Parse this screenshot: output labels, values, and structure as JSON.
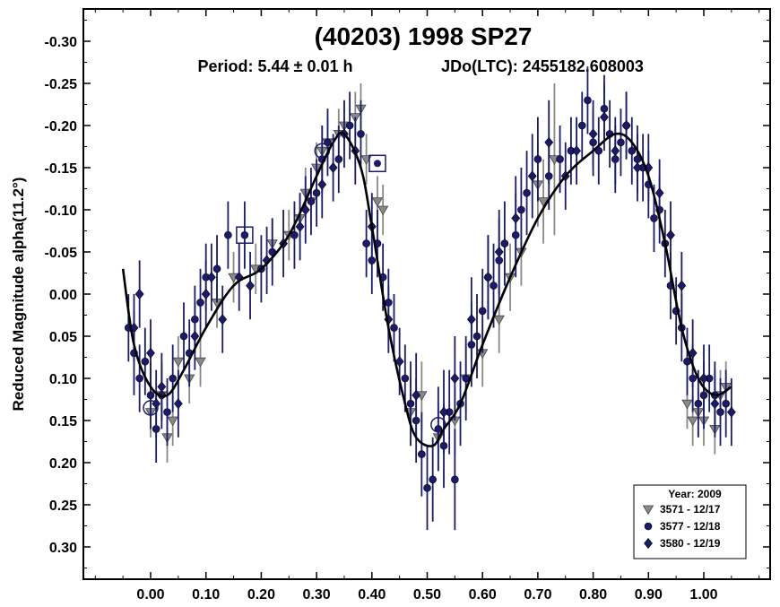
{
  "chart_data": {
    "type": "scatter",
    "title": "(40203) 1998 SP27",
    "subtitle_period": "Period: 5.44 ± 0.01 h",
    "subtitle_epoch": "JDo(LTC): 2455182.608003",
    "ylabel": "Reduced Magnitude alpha(11.2°)",
    "xlabel": "",
    "xlim": [
      -0.1,
      1.12
    ],
    "ylim": [
      -0.33,
      0.34
    ],
    "y_inverted": true,
    "x_ticks": [
      "0.00",
      "0.10",
      "0.20",
      "0.30",
      "0.40",
      "0.50",
      "0.60",
      "0.70",
      "0.80",
      "0.90",
      "1.00"
    ],
    "x_tick_values": [
      0.0,
      0.1,
      0.2,
      0.3,
      0.4,
      0.5,
      0.6,
      0.7,
      0.8,
      0.9,
      1.0
    ],
    "y_ticks": [
      "-0.30",
      "-0.25",
      "-0.20",
      "-0.15",
      "-0.10",
      "-0.05",
      "0.00",
      "0.05",
      "0.10",
      "0.15",
      "0.20",
      "0.25",
      "0.30"
    ],
    "y_tick_values": [
      -0.3,
      -0.25,
      -0.2,
      -0.15,
      -0.1,
      -0.05,
      0.0,
      0.05,
      0.1,
      0.15,
      0.2,
      0.25,
      0.3
    ],
    "grid": false,
    "legend_position": "bottom-right",
    "legend_title": "Year: 2009",
    "series": [
      {
        "name": "3571 - 12/17",
        "marker": "triangle-down",
        "color": "#888888",
        "x": [
          0.0,
          0.02,
          0.03,
          0.04,
          0.05,
          0.07,
          0.09,
          0.12,
          0.15,
          0.19,
          0.22,
          0.25,
          0.27,
          0.28,
          0.29,
          0.3,
          0.31,
          0.32,
          0.34,
          0.35,
          0.37,
          0.38,
          0.39,
          0.41,
          0.42,
          0.47,
          0.49,
          0.52,
          0.55,
          0.57,
          0.6,
          0.63,
          0.65,
          0.67,
          0.7,
          0.71,
          0.73,
          0.97,
          0.98,
          0.99,
          1.0,
          1.02,
          1.03,
          1.04
        ],
        "y": [
          0.14,
          0.12,
          0.17,
          0.15,
          0.08,
          0.1,
          0.08,
          0.01,
          -0.02,
          -0.03,
          -0.06,
          -0.07,
          -0.09,
          -0.12,
          -0.11,
          -0.15,
          -0.17,
          -0.18,
          -0.19,
          -0.2,
          -0.21,
          -0.22,
          -0.16,
          -0.11,
          -0.1,
          0.14,
          0.12,
          0.17,
          0.15,
          0.1,
          0.07,
          0.03,
          -0.02,
          -0.05,
          -0.13,
          -0.11,
          -0.16,
          0.13,
          0.15,
          0.14,
          0.15,
          0.16,
          0.12,
          0.11
        ],
        "y_err": [
          0.03,
          0.03,
          0.03,
          0.03,
          0.03,
          0.03,
          0.03,
          0.03,
          0.03,
          0.03,
          0.03,
          0.03,
          0.03,
          0.03,
          0.03,
          0.03,
          0.03,
          0.03,
          0.03,
          0.03,
          0.03,
          0.03,
          0.03,
          0.03,
          0.03,
          0.04,
          0.04,
          0.04,
          0.04,
          0.04,
          0.04,
          0.04,
          0.04,
          0.04,
          0.05,
          0.05,
          0.09,
          0.03,
          0.03,
          0.03,
          0.03,
          0.03,
          0.03,
          0.03
        ]
      },
      {
        "name": "3577 - 12/18",
        "marker": "circle",
        "color": "#1a1a6e",
        "x": [
          -0.04,
          -0.03,
          -0.02,
          -0.01,
          0.0,
          0.01,
          0.02,
          0.03,
          0.04,
          0.06,
          0.07,
          0.08,
          0.09,
          0.1,
          0.12,
          0.14,
          0.17,
          0.2,
          0.22,
          0.26,
          0.29,
          0.3,
          0.31,
          0.32,
          0.34,
          0.36,
          0.38,
          0.39,
          0.4,
          0.41,
          0.42,
          0.43,
          0.44,
          0.46,
          0.47,
          0.48,
          0.49,
          0.5,
          0.51,
          0.52,
          0.53,
          0.54,
          0.55,
          0.56,
          0.57,
          0.58,
          0.59,
          0.6,
          0.61,
          0.62,
          0.63,
          0.64,
          0.66,
          0.67,
          0.68,
          0.7,
          0.72,
          0.74,
          0.76,
          0.78,
          0.79,
          0.8,
          0.81,
          0.82,
          0.83,
          0.84,
          0.85,
          0.86,
          0.87,
          0.88,
          0.89,
          0.9,
          0.91,
          0.92,
          0.93,
          0.94,
          0.95,
          0.96,
          0.97,
          0.98,
          0.99,
          1.0,
          1.01,
          1.02,
          1.03,
          1.04
        ],
        "y": [
          0.04,
          0.07,
          0.1,
          0.08,
          0.12,
          0.16,
          0.12,
          0.14,
          0.1,
          0.05,
          0.07,
          0.03,
          0.01,
          -0.02,
          -0.03,
          -0.07,
          -0.07,
          -0.03,
          -0.05,
          -0.07,
          -0.11,
          -0.12,
          -0.16,
          -0.18,
          -0.16,
          -0.2,
          -0.19,
          -0.06,
          -0.04,
          -0.06,
          -0.02,
          0.01,
          0.04,
          0.1,
          0.13,
          0.15,
          0.19,
          0.23,
          0.22,
          0.16,
          0.18,
          0.14,
          0.22,
          0.13,
          0.1,
          0.06,
          0.05,
          0.02,
          -0.02,
          -0.01,
          -0.04,
          -0.06,
          -0.07,
          -0.1,
          -0.12,
          -0.16,
          -0.14,
          -0.16,
          -0.17,
          -0.2,
          -0.23,
          -0.18,
          -0.17,
          -0.22,
          -0.19,
          -0.16,
          -0.18,
          -0.2,
          -0.17,
          -0.16,
          -0.15,
          -0.13,
          -0.09,
          -0.1,
          -0.06,
          -0.01,
          0.02,
          0.04,
          0.08,
          0.1,
          0.13,
          0.12,
          0.1,
          0.12,
          0.14,
          0.13
        ],
        "y_err": [
          0.04,
          0.05,
          0.04,
          0.04,
          0.04,
          0.04,
          0.04,
          0.04,
          0.04,
          0.04,
          0.04,
          0.04,
          0.04,
          0.04,
          0.04,
          0.04,
          0.04,
          0.04,
          0.04,
          0.04,
          0.04,
          0.04,
          0.04,
          0.04,
          0.04,
          0.04,
          0.04,
          0.04,
          0.04,
          0.04,
          0.04,
          0.04,
          0.04,
          0.04,
          0.05,
          0.05,
          0.05,
          0.05,
          0.05,
          0.05,
          0.05,
          0.05,
          0.06,
          0.05,
          0.05,
          0.05,
          0.05,
          0.05,
          0.05,
          0.05,
          0.05,
          0.05,
          0.05,
          0.05,
          0.05,
          0.05,
          0.04,
          0.04,
          0.04,
          0.04,
          0.04,
          0.04,
          0.04,
          0.04,
          0.04,
          0.04,
          0.04,
          0.04,
          0.04,
          0.04,
          0.04,
          0.04,
          0.04,
          0.04,
          0.04,
          0.04,
          0.04,
          0.04,
          0.04,
          0.04,
          0.04,
          0.04,
          0.04,
          0.04,
          0.04,
          0.04
        ]
      },
      {
        "name": "3580 - 12/19",
        "marker": "diamond",
        "color": "#1a1a6e",
        "x": [
          -0.03,
          -0.02,
          0.0,
          0.01,
          0.02,
          0.05,
          0.08,
          0.1,
          0.11,
          0.13,
          0.16,
          0.18,
          0.21,
          0.24,
          0.27,
          0.28,
          0.31,
          0.33,
          0.35,
          0.37,
          0.4,
          0.43,
          0.45,
          0.48,
          0.53,
          0.55,
          0.58,
          0.61,
          0.63,
          0.66,
          0.69,
          0.72,
          0.75,
          0.77,
          0.8,
          0.82,
          0.84,
          0.86,
          0.88,
          0.9,
          0.92,
          0.94,
          0.96,
          0.98,
          1.0,
          1.02,
          1.05
        ],
        "y": [
          0.04,
          0.0,
          0.07,
          0.13,
          0.11,
          0.13,
          0.05,
          0.0,
          -0.02,
          0.03,
          -0.02,
          -0.01,
          -0.04,
          -0.06,
          -0.08,
          -0.1,
          -0.13,
          -0.15,
          -0.19,
          -0.17,
          -0.08,
          0.03,
          0.08,
          0.12,
          0.14,
          0.1,
          0.03,
          -0.02,
          -0.05,
          -0.09,
          -0.14,
          -0.18,
          -0.14,
          -0.17,
          -0.19,
          -0.21,
          -0.17,
          -0.2,
          -0.15,
          -0.15,
          -0.12,
          -0.07,
          -0.01,
          0.07,
          0.1,
          0.13,
          0.14
        ],
        "y_err": [
          0.04,
          0.04,
          0.04,
          0.04,
          0.04,
          0.04,
          0.04,
          0.04,
          0.04,
          0.04,
          0.04,
          0.04,
          0.04,
          0.04,
          0.04,
          0.04,
          0.04,
          0.04,
          0.04,
          0.04,
          0.04,
          0.04,
          0.04,
          0.05,
          0.05,
          0.05,
          0.05,
          0.05,
          0.05,
          0.05,
          0.05,
          0.05,
          0.04,
          0.04,
          0.04,
          0.04,
          0.04,
          0.04,
          0.04,
          0.04,
          0.04,
          0.04,
          0.04,
          0.04,
          0.04,
          0.04,
          0.04
        ]
      }
    ],
    "fit_curve": {
      "x": [
        -0.05,
        -0.03,
        0.0,
        0.03,
        0.06,
        0.1,
        0.15,
        0.2,
        0.25,
        0.3,
        0.33,
        0.35,
        0.38,
        0.4,
        0.43,
        0.46,
        0.48,
        0.51,
        0.53,
        0.56,
        0.6,
        0.65,
        0.7,
        0.75,
        0.8,
        0.84,
        0.87,
        0.9,
        0.93,
        0.96,
        0.99,
        1.02,
        1.05
      ],
      "y": [
        -0.03,
        0.06,
        0.11,
        0.12,
        0.09,
        0.04,
        -0.01,
        -0.03,
        -0.07,
        -0.14,
        -0.18,
        -0.19,
        -0.15,
        -0.08,
        0.04,
        0.13,
        0.17,
        0.18,
        0.16,
        0.13,
        0.06,
        -0.02,
        -0.09,
        -0.14,
        -0.17,
        -0.19,
        -0.18,
        -0.14,
        -0.06,
        0.04,
        0.1,
        0.12,
        0.11
      ]
    },
    "highlight_markers": [
      {
        "shape": "square",
        "x": 0.17,
        "y": -0.07
      },
      {
        "shape": "square",
        "x": 0.41,
        "y": -0.155
      },
      {
        "shape": "circle",
        "x": 0.31,
        "y": -0.17
      },
      {
        "shape": "circle",
        "x": 0.52,
        "y": 0.155
      },
      {
        "shape": "circle",
        "x": 0.0,
        "y": 0.135
      }
    ]
  }
}
